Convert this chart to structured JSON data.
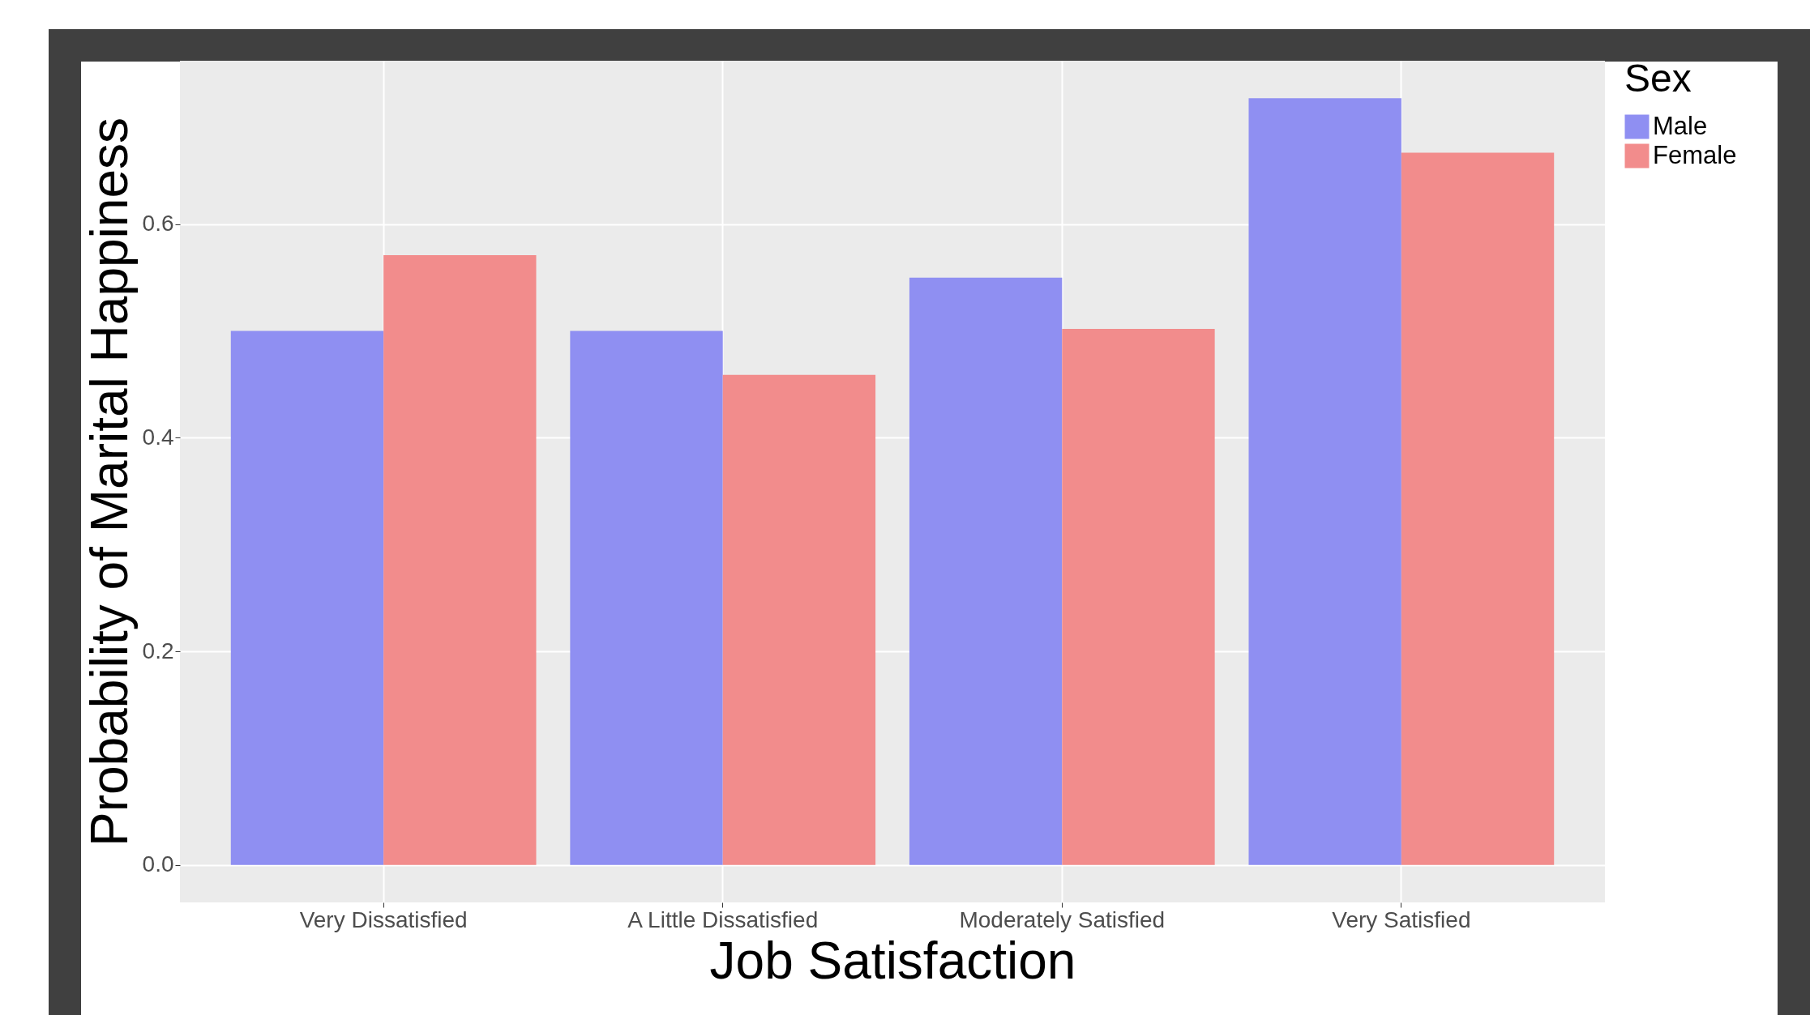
{
  "chart_data": {
    "type": "bar",
    "xlabel": "Job Satisfaction",
    "ylabel": "Probability of Marital Happiness",
    "legend_title": "Sex",
    "categories": [
      "Very Dissatisfied",
      "A Little Dissatisfied",
      "Moderately Satisfied",
      "Very Satisfied"
    ],
    "series": [
      {
        "name": "Male",
        "color": "#8f8ff2",
        "values": [
          0.5,
          0.5,
          0.55,
          0.718
        ]
      },
      {
        "name": "Female",
        "color": "#f28c8c",
        "values": [
          0.571,
          0.459,
          0.502,
          0.667
        ]
      }
    ],
    "ylim": [
      -0.035,
      0.753
    ],
    "yticks": [
      {
        "value": 0,
        "label": "0.0"
      },
      {
        "value": 0.2,
        "label": "0.2"
      },
      {
        "value": 0.4,
        "label": "0.4"
      },
      {
        "value": 0.6,
        "label": "0.6"
      }
    ],
    "grid": true,
    "legend": "right"
  }
}
